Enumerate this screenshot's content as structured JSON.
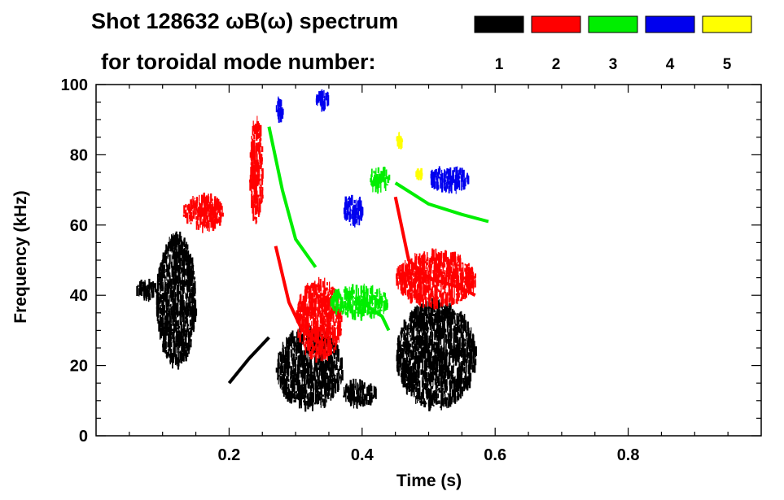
{
  "chart_data": {
    "type": "heatmap",
    "title": "Shot 128632 ωB(ω) spectrum",
    "subtitle": "for toroidal mode number:",
    "xlabel": "Time (s)",
    "ylabel": "Frequency (kHz)",
    "xlim": [
      0.0,
      1.0
    ],
    "ylim": [
      0,
      100
    ],
    "xticks": [
      0.2,
      0.4,
      0.6,
      0.8
    ],
    "xtick_labels": [
      "0.2",
      "0.4",
      "0.6",
      "0.8"
    ],
    "yticks": [
      0,
      20,
      40,
      60,
      80,
      100
    ],
    "ytick_labels": [
      "0",
      "20",
      "40",
      "60",
      "80",
      "100"
    ],
    "legend": [
      {
        "label": "1",
        "color": "#000000"
      },
      {
        "label": "2",
        "color": "#ff0000"
      },
      {
        "label": "3",
        "color": "#00ee00"
      },
      {
        "label": "4",
        "color": "#0000ee"
      },
      {
        "label": "5",
        "color": "#ffff00"
      }
    ],
    "series": [
      {
        "name": "n=1",
        "color": "#000000",
        "blobs": [
          {
            "t": [
              0.09,
              0.15
            ],
            "f": [
              20,
              57
            ]
          },
          {
            "t": [
              0.06,
              0.09
            ],
            "f": [
              39,
              44
            ]
          },
          {
            "t": [
              0.27,
              0.37
            ],
            "f": [
              8,
              30
            ]
          },
          {
            "t": [
              0.37,
              0.42
            ],
            "f": [
              9,
              15
            ]
          },
          {
            "t": [
              0.45,
              0.57
            ],
            "f": [
              8,
              38
            ]
          }
        ],
        "curves": [
          {
            "name": "chirp-down",
            "points": [
              [
                0.2,
                15
              ],
              [
                0.23,
                22
              ],
              [
                0.26,
                28
              ]
            ]
          }
        ]
      },
      {
        "name": "n=2",
        "color": "#ff0000",
        "blobs": [
          {
            "t": [
              0.13,
              0.19
            ],
            "f": [
              59,
              68
            ]
          },
          {
            "t": [
              0.23,
              0.25
            ],
            "f": [
              60,
              90
            ]
          },
          {
            "t": [
              0.3,
              0.37
            ],
            "f": [
              22,
              44
            ]
          },
          {
            "t": [
              0.45,
              0.57
            ],
            "f": [
              37,
              52
            ]
          }
        ],
        "curves": [
          {
            "name": "chirp-down",
            "points": [
              [
                0.27,
                54
              ],
              [
                0.29,
                38
              ],
              [
                0.31,
                30
              ],
              [
                0.34,
                26
              ]
            ]
          },
          {
            "name": "decay",
            "points": [
              [
                0.45,
                68
              ],
              [
                0.47,
                50
              ],
              [
                0.5,
                45
              ],
              [
                0.55,
                42
              ],
              [
                0.57,
                40
              ]
            ]
          }
        ]
      },
      {
        "name": "n=3",
        "color": "#00ee00",
        "blobs": [
          {
            "t": [
              0.35,
              0.44
            ],
            "f": [
              34,
              42
            ]
          },
          {
            "t": [
              0.41,
              0.44
            ],
            "f": [
              70,
              76
            ]
          }
        ],
        "curves": [
          {
            "name": "rise",
            "points": [
              [
                0.26,
                88
              ],
              [
                0.28,
                70
              ],
              [
                0.3,
                56
              ],
              [
                0.33,
                48
              ]
            ]
          },
          {
            "name": "fall",
            "points": [
              [
                0.45,
                72
              ],
              [
                0.5,
                66
              ],
              [
                0.55,
                63
              ],
              [
                0.59,
                61
              ]
            ]
          },
          {
            "name": "mid",
            "points": [
              [
                0.4,
                38
              ],
              [
                0.43,
                34
              ],
              [
                0.44,
                30
              ]
            ]
          }
        ]
      },
      {
        "name": "n=4",
        "color": "#0000ee",
        "blobs": [
          {
            "t": [
              0.27,
              0.28
            ],
            "f": [
              90,
              96
            ]
          },
          {
            "t": [
              0.33,
              0.35
            ],
            "f": [
              93,
              98
            ]
          },
          {
            "t": [
              0.37,
              0.4
            ],
            "f": [
              60,
              68
            ]
          },
          {
            "t": [
              0.5,
              0.56
            ],
            "f": [
              70,
              76
            ]
          }
        ],
        "curves": []
      },
      {
        "name": "n=5",
        "color": "#ffff00",
        "blobs": [
          {
            "t": [
              0.45,
              0.46
            ],
            "f": [
              83,
              85
            ]
          },
          {
            "t": [
              0.48,
              0.49
            ],
            "f": [
              74,
              75
            ]
          }
        ],
        "curves": []
      }
    ]
  }
}
